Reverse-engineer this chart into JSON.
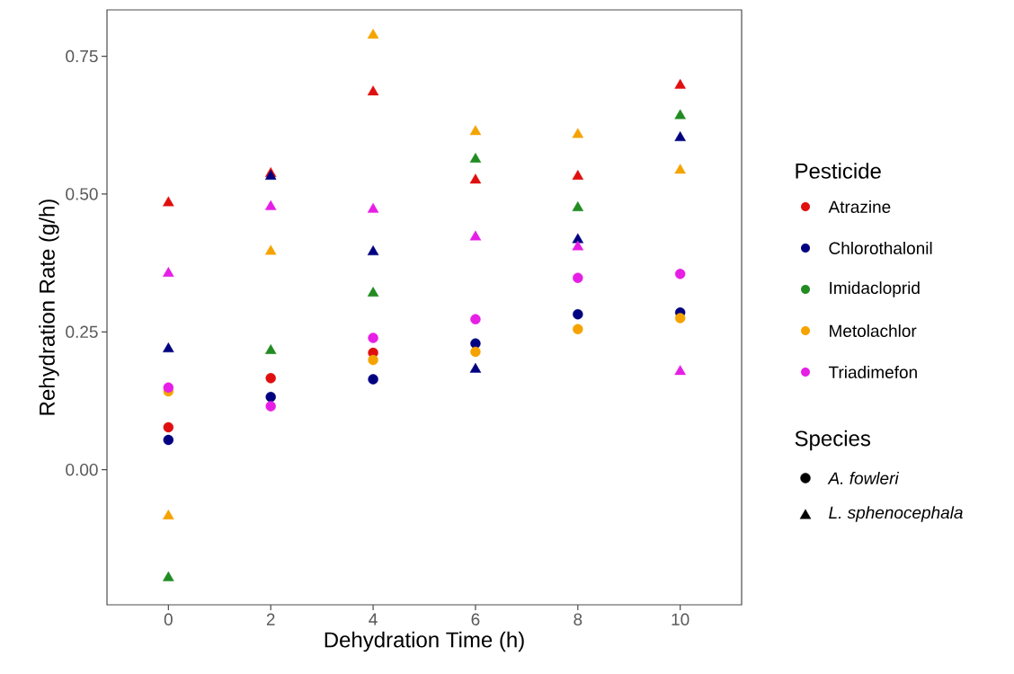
{
  "chart_data": {
    "type": "scatter",
    "xlabel": "Dehydration Time (h)",
    "ylabel": "Rehydration Rate (g/h)",
    "legend_title": "Pesticide",
    "legend": "right",
    "x": [
      0,
      2,
      4,
      6,
      8,
      10
    ],
    "xlim": [
      -1.2,
      11.2
    ],
    "xticks": [
      0,
      2,
      4,
      6,
      8,
      10
    ],
    "ylim": [
      -0.245,
      0.834
    ],
    "yticks": [
      {
        "value": 0,
        "label": "0.00"
      },
      {
        "value": 0.25,
        "label": "0.25"
      },
      {
        "value": 0.5,
        "label": "0.50"
      },
      {
        "value": 0.75,
        "label": "0.75"
      }
    ],
    "series": [
      {
        "name": "Atrazine",
        "color": "#e00f0f",
        "marker": "circle",
        "values": [
          0.077,
          0.166,
          0.212,
          null,
          null,
          null
        ]
      },
      {
        "name": "Chlorothalonil",
        "color": "#000080",
        "marker": "circle",
        "values": [
          0.054,
          0.132,
          0.164,
          0.229,
          0.282,
          0.285
        ]
      },
      {
        "name": "Imidacloprid",
        "color": "#228b22",
        "marker": "triangle",
        "values": [
          -0.196,
          0.216,
          0.32,
          0.563,
          0.475,
          0.642
        ]
      },
      {
        "name": "Metolachlor",
        "color": "#f5a300",
        "marker": "circle",
        "values": [
          0.142,
          null,
          0.199,
          0.214,
          0.255,
          0.275
        ]
      },
      {
        "name": "Triadimefon",
        "color": "#e61ee6",
        "marker": "circle",
        "values": [
          0.149,
          0.115,
          0.239,
          0.273,
          0.348,
          0.355
        ]
      },
      {
        "color": "#e00f0f",
        "marker": "triangle",
        "values": [
          0.484,
          0.537,
          0.685,
          0.525,
          0.532,
          0.697
        ]
      },
      {
        "color": "#000080",
        "marker": "triangle",
        "values": [
          0.219,
          0.532,
          0.395,
          0.182,
          0.417,
          0.602
        ]
      },
      {
        "color": "#f5a300",
        "marker": "triangle",
        "values": [
          -0.084,
          0.396,
          0.788,
          0.613,
          0.608,
          0.543
        ]
      },
      {
        "color": "#e61ee6",
        "marker": "triangle",
        "values": [
          0.356,
          0.477,
          0.472,
          0.422,
          0.404,
          0.178
        ]
      }
    ],
    "annotations": [
      "Species",
      "A. fowleri",
      "L. sphenocephala"
    ]
  }
}
